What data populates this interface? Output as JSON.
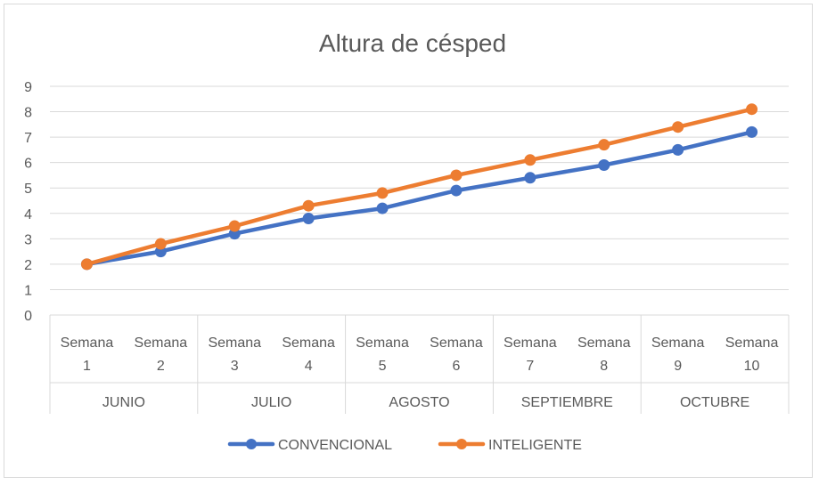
{
  "chart_data": {
    "type": "line",
    "title": "Altura de césped",
    "xlabel": "",
    "ylabel": "",
    "ylim": [
      0,
      9
    ],
    "yticks": [
      "0",
      "1",
      "2",
      "3",
      "4",
      "5",
      "6",
      "7",
      "8",
      "9"
    ],
    "grid": true,
    "legend_position": "bottom",
    "categories": [
      {
        "line1": "Semana",
        "line2": "1"
      },
      {
        "line1": "Semana",
        "line2": "2"
      },
      {
        "line1": "Semana",
        "line2": "3"
      },
      {
        "line1": "Semana",
        "line2": "4"
      },
      {
        "line1": "Semana",
        "line2": "5"
      },
      {
        "line1": "Semana",
        "line2": "6"
      },
      {
        "line1": "Semana",
        "line2": "7"
      },
      {
        "line1": "Semana",
        "line2": "8"
      },
      {
        "line1": "Semana",
        "line2": "9"
      },
      {
        "line1": "Semana",
        "line2": "10"
      }
    ],
    "groups": [
      {
        "label": "JUNIO",
        "span": 2
      },
      {
        "label": "JULIO",
        "span": 2
      },
      {
        "label": "AGOSTO",
        "span": 2
      },
      {
        "label": "SEPTIEMBRE",
        "span": 2
      },
      {
        "label": "OCTUBRE",
        "span": 2
      }
    ],
    "series": [
      {
        "name": "CONVENCIONAL",
        "color": "#4472c4",
        "values": [
          2.0,
          2.5,
          3.2,
          3.8,
          4.2,
          4.9,
          5.4,
          5.9,
          6.5,
          7.2
        ]
      },
      {
        "name": "INTELIGENTE",
        "color": "#ed7d31",
        "values": [
          2.0,
          2.8,
          3.5,
          4.3,
          4.8,
          5.5,
          6.1,
          6.7,
          7.4,
          8.1
        ]
      }
    ]
  }
}
